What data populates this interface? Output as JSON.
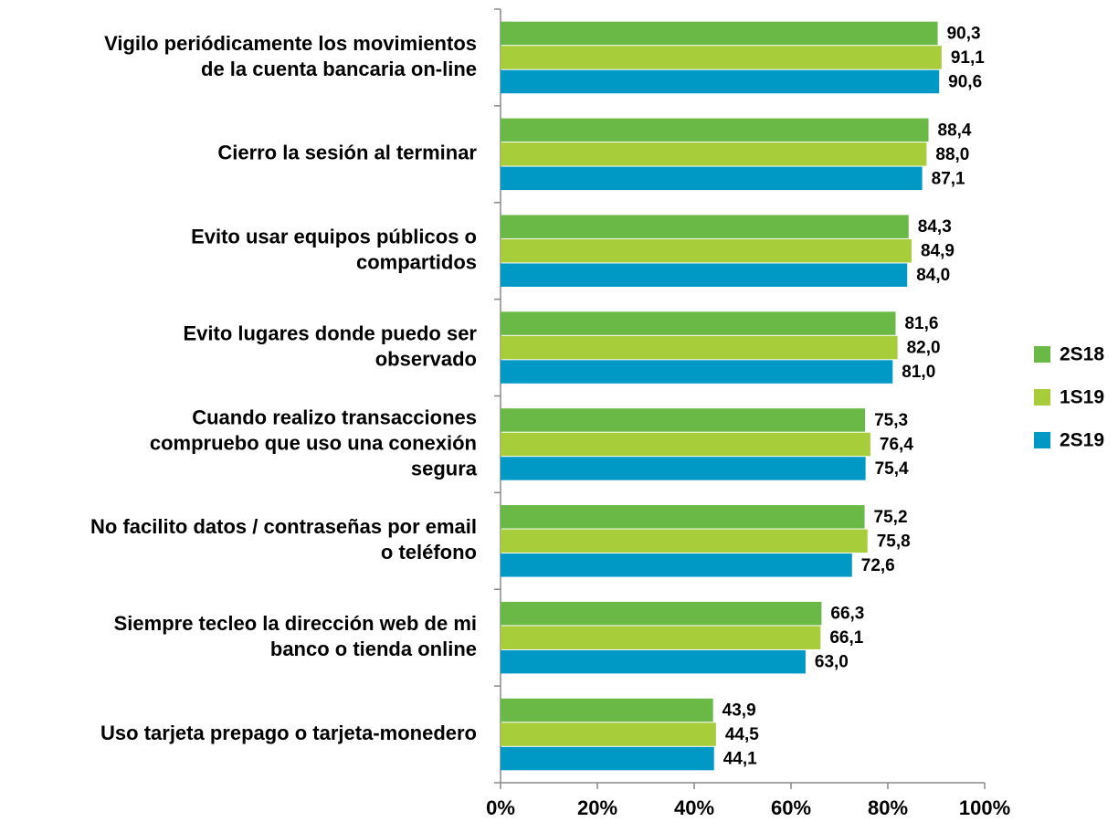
{
  "chart_data": {
    "type": "bar",
    "orientation": "horizontal",
    "categories": [
      [
        "Vigilo periódicamente los movimientos",
        "de la cuenta bancaria on-line"
      ],
      [
        "Cierro la sesión al terminar"
      ],
      [
        "Evito usar equipos públicos o",
        "compartidos"
      ],
      [
        "Evito lugares donde puedo ser",
        "observado"
      ],
      [
        "Cuando realizo transacciones",
        "compruebo que uso una conexión",
        "segura"
      ],
      [
        "No facilito datos / contraseñas por email",
        "o teléfono"
      ],
      [
        "Siempre tecleo la dirección web de mi",
        "banco o tienda online"
      ],
      [
        "Uso tarjeta prepago o tarjeta-monedero"
      ]
    ],
    "series": [
      {
        "name": "2S18",
        "color": "#6ab946",
        "values": [
          90.3,
          88.4,
          84.3,
          81.6,
          75.3,
          75.2,
          66.3,
          43.9
        ],
        "value_labels": [
          "90,3",
          "88,4",
          "84,3",
          "81,6",
          "75,3",
          "75,2",
          "66,3",
          "43,9"
        ]
      },
      {
        "name": "1S19",
        "color": "#a8cd3a",
        "values": [
          91.1,
          88.0,
          84.9,
          82.0,
          76.4,
          75.8,
          66.1,
          44.5
        ],
        "value_labels": [
          "91,1",
          "88,0",
          "84,9",
          "82,0",
          "76,4",
          "75,8",
          "66,1",
          "44,5"
        ]
      },
      {
        "name": "2S19",
        "color": "#0099c6",
        "values": [
          90.6,
          87.1,
          84.0,
          81.0,
          75.4,
          72.6,
          63.0,
          44.1
        ],
        "value_labels": [
          "90,6",
          "87,1",
          "84,0",
          "81,0",
          "75,4",
          "72,6",
          "63,0",
          "44,1"
        ]
      }
    ],
    "xlim": [
      0,
      100
    ],
    "xticks": [
      {
        "value": 0,
        "label": "0%"
      },
      {
        "value": 20,
        "label": "20%"
      },
      {
        "value": 40,
        "label": "40%"
      },
      {
        "value": 60,
        "label": "60%"
      },
      {
        "value": 80,
        "label": "80%"
      },
      {
        "value": 100,
        "label": "100%"
      }
    ],
    "grid": false,
    "legend": "right"
  }
}
